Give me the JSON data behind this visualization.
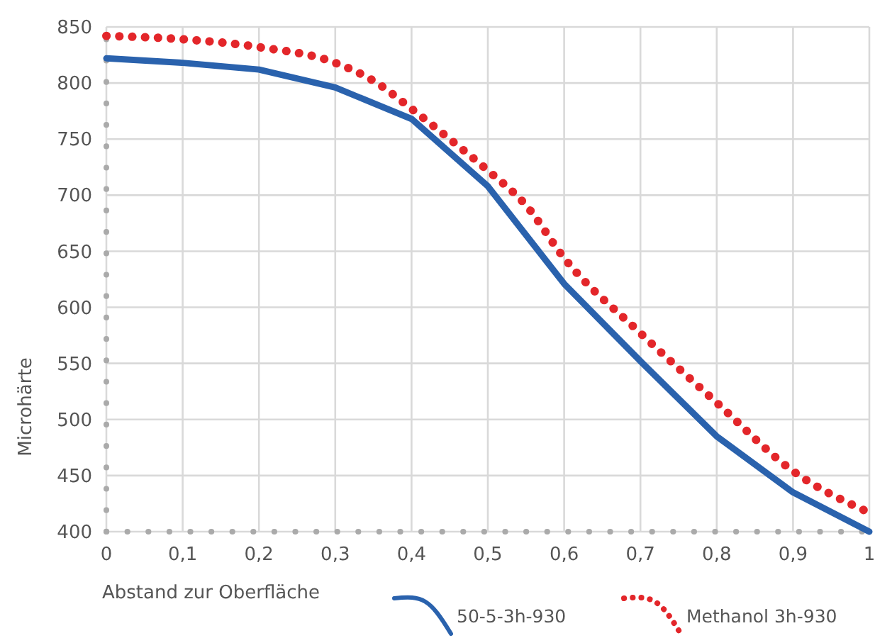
{
  "chart_data": {
    "type": "line",
    "xlabel": "Abstand zur Oberfläche",
    "ylabel": "Microhärte",
    "xlim": [
      0,
      1
    ],
    "ylim": [
      400,
      850
    ],
    "xticks": [
      0,
      {
        "value": 0.1,
        "label": "0,1"
      },
      {
        "value": 0.2,
        "label": "0,2"
      },
      {
        "value": 0.3,
        "label": "0,3"
      },
      {
        "value": 0.4,
        "label": "0,4"
      },
      {
        "value": 0.5,
        "label": "0,5"
      },
      {
        "value": 0.6,
        "label": "0,6"
      },
      {
        "value": 0.7,
        "label": "0,7"
      },
      {
        "value": 0.8,
        "label": "0,8"
      },
      {
        "value": 0.9,
        "label": "0,9"
      },
      1
    ],
    "yticks": [
      400,
      450,
      500,
      550,
      600,
      650,
      700,
      750,
      800,
      850
    ],
    "grid": true,
    "legend": "bottom",
    "series": [
      {
        "name": "50-5-3h-930",
        "color": "#2a62ad",
        "line_style": "solid",
        "x": [
          0,
          0.1,
          0.2,
          0.3,
          0.4,
          0.5,
          0.6,
          0.7,
          0.8,
          0.9,
          1
        ],
        "values": [
          822,
          818,
          812,
          796,
          768,
          708,
          621,
          552,
          485,
          435,
          400
        ]
      },
      {
        "name": "Methanol 3h-930",
        "color": "#e3262a",
        "line_style": "dotted",
        "x": [
          0,
          0.1,
          0.2,
          0.3,
          0.35,
          0.4,
          0.45,
          0.5,
          0.55,
          0.6,
          0.7,
          0.8,
          0.9,
          1
        ],
        "values": [
          842,
          839,
          832,
          818,
          802,
          777,
          750,
          722,
          691,
          644,
          577,
          515,
          454,
          417
        ]
      }
    ]
  }
}
